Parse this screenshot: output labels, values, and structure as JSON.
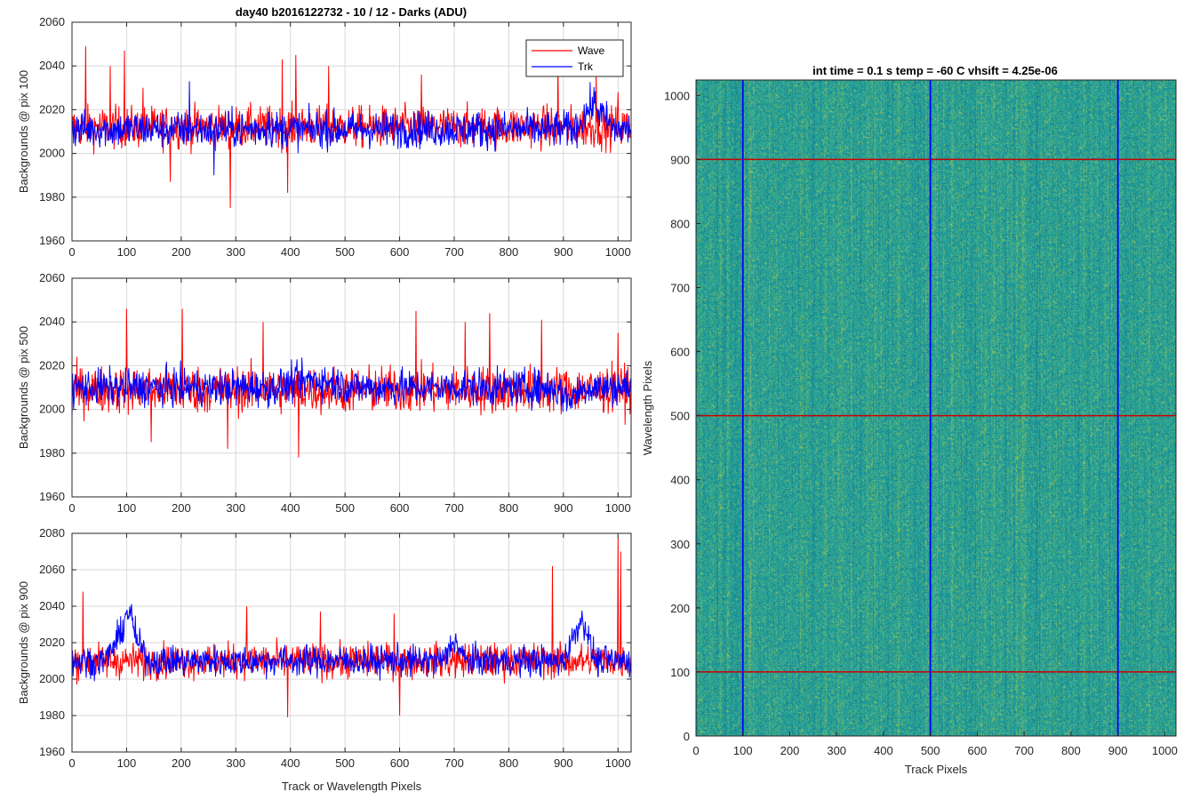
{
  "figure": {
    "main_title": "day40 b2016122732 - 10 / 12 - Darks (ADU)",
    "image_title": "int time = 0.1 s   temp = -60 C   vhsift = 4.25e-06"
  },
  "legend": {
    "wave": "Wave",
    "trk": "Trk",
    "position": "top-right of top panel"
  },
  "colors": {
    "wave": "#ff0000",
    "trk": "#0000ff",
    "grid": "#d9d9d9",
    "image_base": "#1fa39a",
    "image_light": "#b5c94a",
    "image_dark": "#1d8c8a"
  },
  "chart_data": [
    {
      "type": "line",
      "ylabel": "Backgrounds @ pix 100",
      "xlabel": "",
      "xlim": [
        0,
        1024
      ],
      "ylim": [
        1960,
        2060
      ],
      "xticks": [
        0,
        100,
        200,
        300,
        400,
        500,
        600,
        700,
        800,
        900,
        1000
      ],
      "yticks": [
        1960,
        1980,
        2000,
        2020,
        2040,
        2060
      ],
      "grid": true,
      "series": [
        {
          "name": "Wave",
          "color": "#ff0000",
          "mean": 2012,
          "noise": 8,
          "spikes": [
            [
              25,
              2049
            ],
            [
              70,
              2040
            ],
            [
              96,
              2047
            ],
            [
              130,
              2030
            ],
            [
              385,
              2043
            ],
            [
              410,
              2045
            ],
            [
              470,
              2040
            ],
            [
              640,
              2036
            ],
            [
              890,
              2041
            ],
            [
              960,
              2037
            ],
            [
              1000,
              2028
            ],
            [
              290,
              1975
            ],
            [
              180,
              1987
            ],
            [
              395,
              1982
            ]
          ],
          "drift": []
        },
        {
          "name": "Trk",
          "color": "#0000ff",
          "mean": 2011,
          "noise": 7,
          "spikes": [
            [
              215,
              2033
            ],
            [
              260,
              1990
            ],
            [
              360,
              2019
            ]
          ],
          "drift": [
            [
              0,
              1024,
              0
            ],
            [
              920,
              990,
              12
            ]
          ]
        }
      ]
    },
    {
      "type": "line",
      "ylabel": "Backgrounds @ pix 500",
      "xlabel": "",
      "xlim": [
        0,
        1024
      ],
      "ylim": [
        1960,
        2060
      ],
      "xticks": [
        0,
        100,
        200,
        300,
        400,
        500,
        600,
        700,
        800,
        900,
        1000
      ],
      "yticks": [
        1960,
        1980,
        2000,
        2020,
        2040,
        2060
      ],
      "grid": true,
      "series": [
        {
          "name": "Wave",
          "color": "#ff0000",
          "mean": 2009,
          "noise": 9,
          "spikes": [
            [
              100,
              2046
            ],
            [
              202,
              2046
            ],
            [
              350,
              2040
            ],
            [
              630,
              2045
            ],
            [
              720,
              2040
            ],
            [
              765,
              2044
            ],
            [
              860,
              2041
            ],
            [
              415,
              1978
            ],
            [
              145,
              1985
            ],
            [
              285,
              1982
            ],
            [
              1000,
              2035
            ]
          ],
          "drift": []
        },
        {
          "name": "Trk",
          "color": "#0000ff",
          "mean": 2010,
          "noise": 7,
          "spikes": [
            [
              0,
              1996
            ]
          ],
          "drift": [
            [
              370,
              520,
              4
            ],
            [
              880,
              940,
              -5
            ]
          ]
        }
      ]
    },
    {
      "type": "line",
      "ylabel": "Backgrounds @ pix 900",
      "xlabel": "Track or Wavelength Pixels",
      "xlim": [
        0,
        1024
      ],
      "ylim": [
        1960,
        2080
      ],
      "xticks": [
        0,
        100,
        200,
        300,
        400,
        500,
        600,
        700,
        800,
        900,
        1000
      ],
      "yticks": [
        1960,
        1980,
        2000,
        2020,
        2040,
        2060,
        2080
      ],
      "grid": true,
      "series": [
        {
          "name": "Wave",
          "color": "#ff0000",
          "mean": 2010,
          "noise": 8,
          "spikes": [
            [
              880,
              2062
            ],
            [
              1000,
              2078
            ],
            [
              1005,
              2070
            ],
            [
              395,
              1979
            ],
            [
              600,
              1980
            ],
            [
              320,
              2040
            ],
            [
              455,
              2037
            ],
            [
              590,
              2036
            ],
            [
              20,
              2048
            ]
          ],
          "drift": []
        },
        {
          "name": "Trk",
          "color": "#0000ff",
          "mean": 2010,
          "noise": 7,
          "spikes": [],
          "drift": [
            [
              60,
              140,
              20
            ],
            [
              90,
              120,
              10
            ],
            [
              680,
              720,
              12
            ],
            [
              900,
              960,
              22
            ],
            [
              930,
              950,
              6
            ]
          ]
        }
      ]
    },
    {
      "type": "heatmap",
      "title": "int time = 0.1 s   temp = -60 C   vhsift = 4.25e-06",
      "xlabel": "Track Pixels",
      "ylabel": "Wavelength Pixels",
      "xlim": [
        0,
        1024
      ],
      "ylim": [
        0,
        1024
      ],
      "xticks": [
        0,
        100,
        200,
        300,
        400,
        500,
        600,
        700,
        800,
        900,
        1000
      ],
      "yticks": [
        0,
        100,
        200,
        300,
        400,
        500,
        600,
        700,
        800,
        900,
        1000
      ],
      "vertical_lines": {
        "color": "#0000ff",
        "x": [
          100,
          500,
          900
        ]
      },
      "horizontal_lines": {
        "color": "#cc0000",
        "y": [
          100,
          500,
          900
        ]
      }
    }
  ]
}
